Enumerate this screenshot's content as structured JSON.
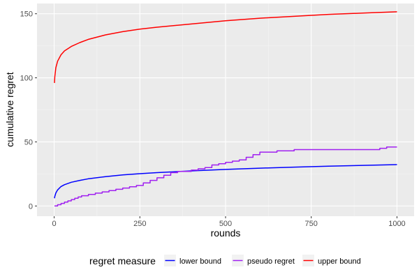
{
  "chart_data": {
    "type": "line",
    "xlabel": "rounds",
    "ylabel": "cumulative regret",
    "xlim": [
      -50,
      1050
    ],
    "ylim": [
      -8,
      158
    ],
    "xticks": [
      0,
      250,
      500,
      750,
      1000
    ],
    "yticks": [
      0,
      50,
      100,
      150
    ],
    "xticks_minor": [
      125,
      375,
      625,
      875
    ],
    "yticks_minor": [
      25,
      75,
      125
    ],
    "grid": true,
    "legend": {
      "title": "regret measure",
      "position": "bottom",
      "entries": [
        "lower bound",
        "pseudo regret",
        "upper bound"
      ]
    },
    "series": [
      {
        "name": "lower bound",
        "color": "#0000ff",
        "x": [
          1,
          2,
          5,
          10,
          20,
          30,
          50,
          75,
          100,
          150,
          200,
          250,
          300,
          400,
          500,
          600,
          700,
          800,
          900,
          1000
        ],
        "y": [
          6.0,
          7.5,
          10.2,
          12.5,
          15.2,
          16.6,
          18.5,
          20.0,
          21.2,
          22.9,
          24.2,
          25.2,
          26.0,
          27.4,
          28.5,
          29.5,
          30.3,
          31.0,
          31.7,
          32.3
        ]
      },
      {
        "name": "pseudo regret",
        "color": "#a020f0",
        "x": [
          1,
          10,
          20,
          30,
          40,
          50,
          60,
          70,
          80,
          90,
          100,
          120,
          140,
          160,
          180,
          200,
          220,
          240,
          260,
          280,
          300,
          320,
          340,
          360,
          380,
          400,
          420,
          440,
          460,
          480,
          500,
          520,
          540,
          560,
          580,
          600,
          620,
          650,
          700,
          750,
          800,
          850,
          900,
          940,
          950,
          970,
          1000
        ],
        "y": [
          0,
          1,
          2,
          3,
          4,
          5,
          6,
          7,
          8,
          8,
          9,
          10,
          11,
          12,
          13,
          14,
          15,
          16,
          18,
          20,
          22,
          24,
          26,
          27,
          27,
          28,
          29,
          30,
          32,
          33,
          34,
          35,
          36,
          38,
          40,
          42,
          42,
          43,
          44,
          44,
          44,
          44,
          44,
          44,
          45,
          46,
          46
        ]
      },
      {
        "name": "upper bound",
        "color": "#ff0000",
        "x": [
          1,
          2,
          5,
          10,
          20,
          30,
          50,
          75,
          100,
          150,
          200,
          250,
          300,
          400,
          500,
          600,
          700,
          800,
          900,
          1000
        ],
        "y": [
          96,
          101,
          108,
          113,
          118,
          121,
          124.5,
          127.5,
          130,
          133.5,
          136,
          138,
          139.5,
          142,
          144.5,
          146.5,
          148,
          149.5,
          150.5,
          151.5
        ]
      }
    ]
  }
}
